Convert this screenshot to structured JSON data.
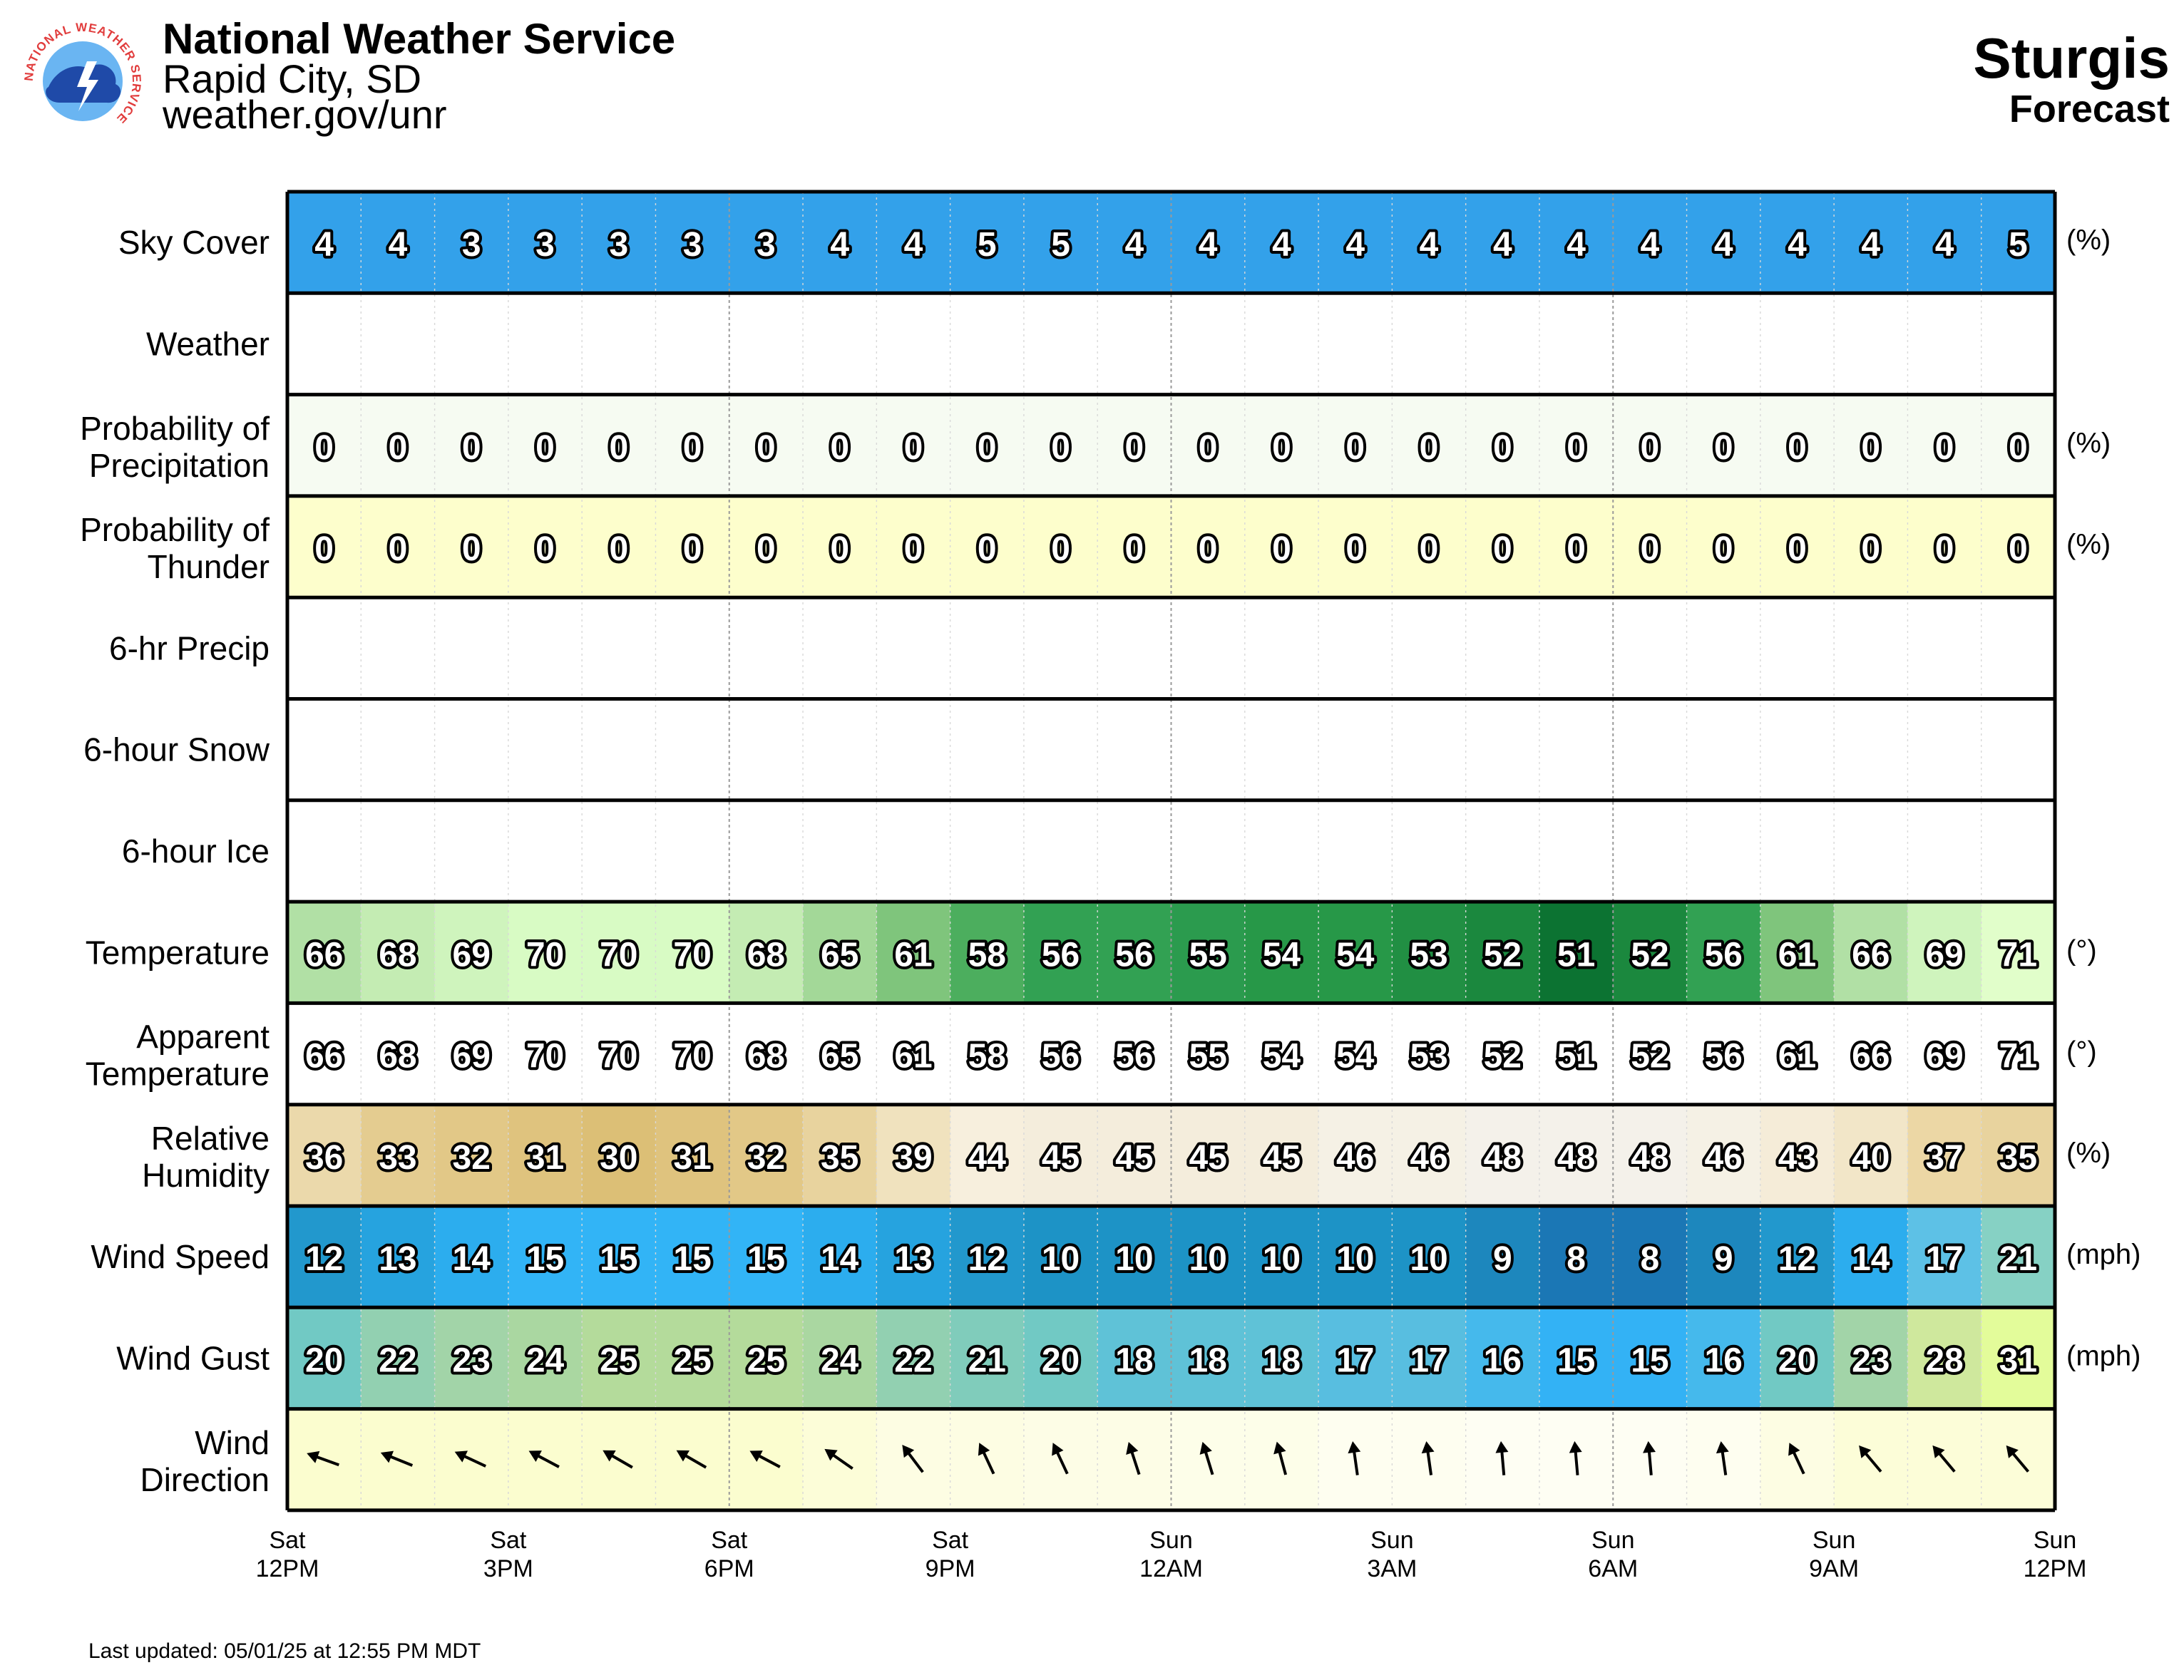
{
  "header": {
    "organization": "National Weather Service",
    "office": "Rapid City, SD",
    "website": "weather.gov/unr",
    "location": "Sturgis",
    "subtitle": "Forecast",
    "logo_text": "NATIONAL WEATHER SERVICE"
  },
  "footer": {
    "last_updated": "Last updated: 05/01/25 at 12:55 PM MDT"
  },
  "chart_data": {
    "type": "table",
    "hours": [
      "Sat 12PM",
      "Sat 1PM",
      "Sat 2PM",
      "Sat 3PM",
      "Sat 4PM",
      "Sat 5PM",
      "Sat 6PM",
      "Sat 7PM",
      "Sat 8PM",
      "Sat 9PM",
      "Sat 10PM",
      "Sat 11PM",
      "Sun 12AM",
      "Sun 1AM",
      "Sun 2AM",
      "Sun 3AM",
      "Sun 4AM",
      "Sun 5AM",
      "Sun 6AM",
      "Sun 7AM",
      "Sun 8AM",
      "Sun 9AM",
      "Sun 10AM",
      "Sun 11AM"
    ],
    "x_tick_labels": [
      {
        "day": "Sat",
        "time": "12PM"
      },
      {
        "day": "Sat",
        "time": "3PM"
      },
      {
        "day": "Sat",
        "time": "6PM"
      },
      {
        "day": "Sat",
        "time": "9PM"
      },
      {
        "day": "Sun",
        "time": "12AM"
      },
      {
        "day": "Sun",
        "time": "3AM"
      },
      {
        "day": "Sun",
        "time": "6AM"
      },
      {
        "day": "Sun",
        "time": "9AM"
      },
      {
        "day": "Sun",
        "time": "12PM"
      }
    ],
    "rows": [
      {
        "label": [
          "Sky Cover"
        ],
        "unit": "(%)",
        "type": "values",
        "values": [
          4,
          4,
          3,
          3,
          3,
          3,
          3,
          4,
          4,
          5,
          5,
          4,
          4,
          4,
          4,
          4,
          4,
          4,
          4,
          4,
          4,
          4,
          4,
          5
        ],
        "colors": [
          "#33a1ea"
        ]
      },
      {
        "label": [
          "Weather"
        ],
        "unit": "",
        "type": "empty",
        "colors": [
          "#ffffff"
        ]
      },
      {
        "label": [
          "Probability of",
          "Precipitation"
        ],
        "unit": "(%)",
        "type": "values",
        "values": [
          0,
          0,
          0,
          0,
          0,
          0,
          0,
          0,
          0,
          0,
          0,
          0,
          0,
          0,
          0,
          0,
          0,
          0,
          0,
          0,
          0,
          0,
          0,
          0
        ],
        "colors": [
          "#f6fbf2"
        ]
      },
      {
        "label": [
          "Probability of",
          "Thunder"
        ],
        "unit": "(%)",
        "type": "values",
        "values": [
          0,
          0,
          0,
          0,
          0,
          0,
          0,
          0,
          0,
          0,
          0,
          0,
          0,
          0,
          0,
          0,
          0,
          0,
          0,
          0,
          0,
          0,
          0,
          0
        ],
        "colors": [
          "#fdfecc"
        ]
      },
      {
        "label": [
          "6-hr Precip"
        ],
        "unit": "",
        "type": "empty",
        "colors": [
          "#ffffff"
        ]
      },
      {
        "label": [
          "6-hour Snow"
        ],
        "unit": "",
        "type": "empty",
        "colors": [
          "#ffffff"
        ]
      },
      {
        "label": [
          "6-hour Ice"
        ],
        "unit": "",
        "type": "empty",
        "colors": [
          "#ffffff"
        ]
      },
      {
        "label": [
          "Temperature"
        ],
        "unit": "(°)",
        "type": "values",
        "values": [
          66,
          68,
          69,
          70,
          70,
          70,
          68,
          65,
          61,
          58,
          56,
          56,
          55,
          54,
          54,
          53,
          52,
          51,
          52,
          56,
          61,
          66,
          69,
          71
        ],
        "colors": [
          "#b1e0a5",
          "#c4ecb3",
          "#cff4bd",
          "#d8fbc4",
          "#d8fbc4",
          "#d8fbc4",
          "#c4ecb3",
          "#a3d898",
          "#7fc57c",
          "#4cae5e",
          "#32a153",
          "#32a153",
          "#2b9b4e",
          "#279848",
          "#279848",
          "#218f43",
          "#1b883e",
          "#0c7332",
          "#1b883e",
          "#32a153",
          "#7fc57c",
          "#b1e0a5",
          "#cff4bd",
          "#e1feca"
        ]
      },
      {
        "label": [
          "Apparent",
          "Temperature"
        ],
        "unit": "(°)",
        "type": "values",
        "values": [
          66,
          68,
          69,
          70,
          70,
          70,
          68,
          65,
          61,
          58,
          56,
          56,
          55,
          54,
          54,
          53,
          52,
          51,
          52,
          56,
          61,
          66,
          69,
          71
        ],
        "colors": [
          "#ffffff"
        ]
      },
      {
        "label": [
          "Relative",
          "Humidity"
        ],
        "unit": "(%)",
        "type": "values",
        "values": [
          36,
          33,
          32,
          31,
          30,
          31,
          32,
          35,
          39,
          44,
          45,
          45,
          45,
          45,
          46,
          46,
          48,
          48,
          48,
          46,
          43,
          40,
          37,
          35
        ],
        "colors": [
          "#ebd9ab",
          "#e4cc90",
          "#e2c887",
          "#dfc37e",
          "#dcbf76",
          "#dfc37e",
          "#e2c887",
          "#e8d39e",
          "#f0e2be",
          "#f7efdd",
          "#f4eddc",
          "#f4eddc",
          "#f4eddc",
          "#f4eddc",
          "#f5f1e5",
          "#f5f1e5",
          "#f4f1ea",
          "#f4f1ea",
          "#f4f1ea",
          "#f5f1e5",
          "#f5ecd8",
          "#f2e6c8",
          "#ecd7a5",
          "#e8d39e"
        ]
      },
      {
        "label": [
          "Wind Speed"
        ],
        "unit": "(mph)",
        "type": "values",
        "values": [
          12,
          13,
          14,
          15,
          15,
          15,
          15,
          14,
          13,
          12,
          10,
          10,
          10,
          10,
          10,
          10,
          9,
          8,
          8,
          9,
          12,
          14,
          17,
          21
        ],
        "colors": [
          "#2298cd",
          "#26a3df",
          "#2cadee",
          "#32b4f6",
          "#32b4f6",
          "#32b4f6",
          "#32b4f6",
          "#2cadee",
          "#26a3df",
          "#2298cd",
          "#1d93c6",
          "#1d93c6",
          "#1d93c6",
          "#1d93c6",
          "#1d93c6",
          "#1d93c6",
          "#1d87bd",
          "#1b77b5",
          "#1b77b5",
          "#1d87bd",
          "#2298cd",
          "#2cadee",
          "#5dc1e6",
          "#86d1c4"
        ]
      },
      {
        "label": [
          "Wind Gust"
        ],
        "unit": "(mph)",
        "type": "values",
        "values": [
          20,
          22,
          23,
          24,
          25,
          25,
          25,
          24,
          22,
          21,
          20,
          18,
          18,
          18,
          17,
          17,
          16,
          15,
          15,
          16,
          20,
          23,
          28,
          31
        ],
        "colors": [
          "#71c9c4",
          "#92d0b1",
          "#a2d4a8",
          "#aad7a1",
          "#b4db9b",
          "#b4db9b",
          "#b4db9b",
          "#aad7a1",
          "#92d0b1",
          "#80ccbb",
          "#71c9c4",
          "#5fc2d7",
          "#5fc2d7",
          "#5fc2d7",
          "#58bee0",
          "#58bee0",
          "#45b9ec",
          "#33b2f5",
          "#33b2f5",
          "#45b9ec",
          "#71c9c4",
          "#a2d4a8",
          "#cfe89d",
          "#e3fc9a"
        ]
      },
      {
        "label": [
          "Wind",
          "Direction"
        ],
        "unit": "",
        "type": "arrows",
        "directions_deg": [
          110,
          112,
          115,
          118,
          120,
          120,
          118,
          125,
          143,
          155,
          155,
          162,
          163,
          165,
          172,
          172,
          175,
          175,
          175,
          172,
          155,
          140,
          140,
          140
        ],
        "colors": [
          "#fbfdcf",
          "#fbfdcf",
          "#fbfdcf",
          "#fbfdcf",
          "#fbfdcf",
          "#fbfdcf",
          "#fbfdcf",
          "#fcfdd8",
          "#fdfde3",
          "#fdfde3",
          "#fdfde6",
          "#fdfde6",
          "#fdfee9",
          "#fdfee9",
          "#fefef0",
          "#fefef0",
          "#fefef3",
          "#fefef3",
          "#fefef3",
          "#fefef0",
          "#fdfde3",
          "#fcfdd8",
          "#fcfdd8",
          "#fcfdd8"
        ]
      }
    ],
    "colors": {
      "grid": "#000000",
      "text_fill": "#ffffff",
      "text_stroke": "#000000",
      "logo_ring": "#e13c3c",
      "logo_blue": "#1f4aa8",
      "logo_sky": "#6ab5f2"
    }
  }
}
